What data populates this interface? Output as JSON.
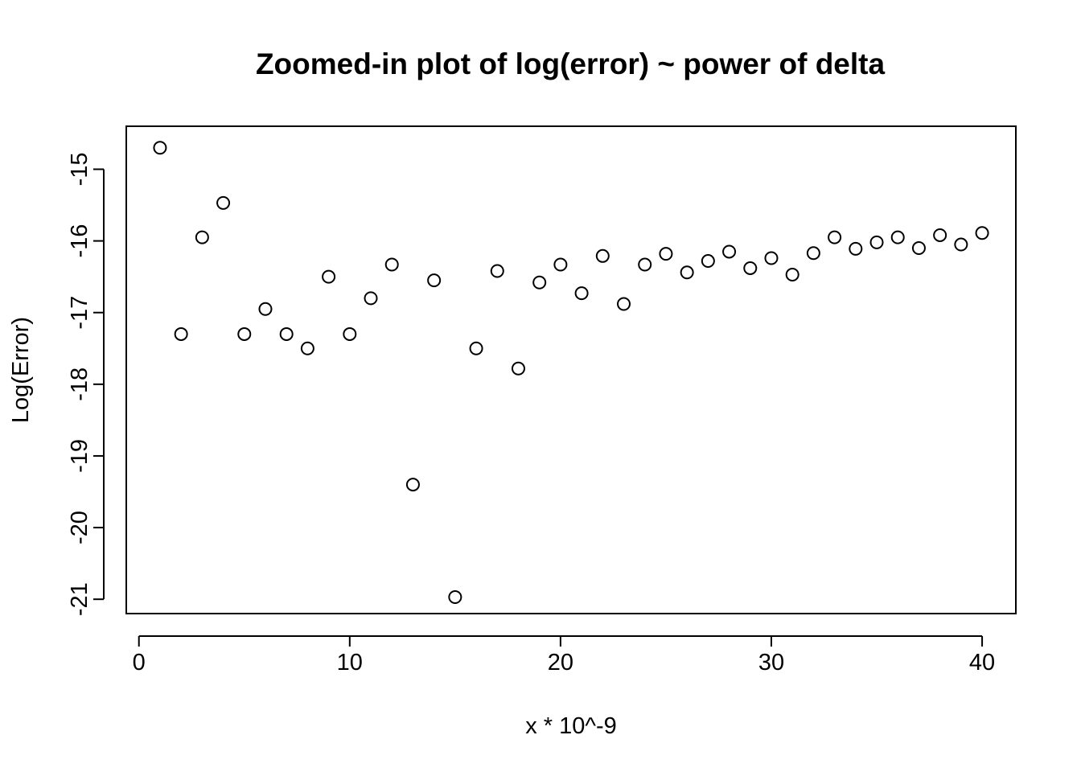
{
  "chart_data": {
    "type": "scatter",
    "title": "Zoomed-in plot of log(error) ~ power of delta",
    "xlabel": "x * 10^-9",
    "ylabel": "Log(Error)",
    "xlim": [
      -0.6,
      41.6
    ],
    "ylim": [
      -21.2,
      -14.4
    ],
    "xticks": [
      0,
      10,
      20,
      30,
      40
    ],
    "yticks": [
      -15,
      -16,
      -17,
      -18,
      -19,
      -20,
      -21
    ],
    "xtick_labels": [
      "0",
      "10",
      "20",
      "30",
      "40"
    ],
    "ytick_labels": [
      "-15",
      "-16",
      "-17",
      "-18",
      "-19",
      "-20",
      "-21"
    ],
    "grid": false,
    "marker": "open-circle",
    "series": [
      {
        "x": [
          1,
          2,
          3,
          4,
          5,
          6,
          7,
          8,
          9,
          10,
          11,
          12,
          13,
          14,
          15,
          16,
          17,
          18,
          19,
          20,
          21,
          22,
          23,
          24,
          25,
          26,
          27,
          28,
          29,
          30,
          31,
          32,
          33,
          34,
          35,
          36,
          37,
          38,
          39,
          40
        ],
        "y": [
          -14.7,
          -17.3,
          -15.95,
          -15.47,
          -17.3,
          -16.95,
          -17.3,
          -17.5,
          -16.5,
          -17.3,
          -16.8,
          -16.33,
          -19.4,
          -16.55,
          -20.97,
          -17.5,
          -16.42,
          -17.78,
          -16.58,
          -16.33,
          -16.73,
          -16.21,
          -16.88,
          -16.33,
          -16.18,
          -16.44,
          -16.28,
          -16.15,
          -16.38,
          -16.24,
          -16.47,
          -16.17,
          -15.95,
          -16.11,
          -16.02,
          -15.95,
          -16.1,
          -15.92,
          -16.05,
          -15.89
        ]
      }
    ]
  }
}
